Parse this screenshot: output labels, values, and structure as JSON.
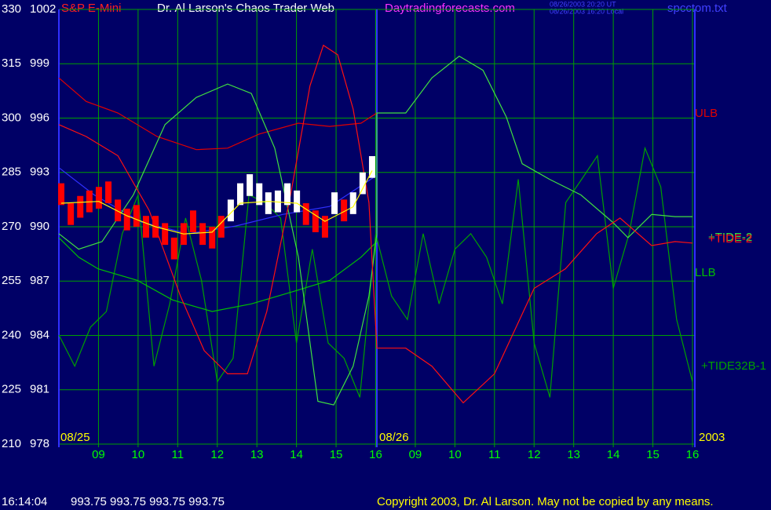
{
  "chart_data": {
    "type": "line",
    "symbol": "S&P E-Mini",
    "title": "Dr. Al Larson's Chaos Trader Web",
    "site": "Daytradingforecasts.com",
    "timestamps": [
      "08/26/2003 20:20 UT",
      "08/26/2003 16:20 Local"
    ],
    "file": "spcctom.txt",
    "annotations": [
      "08/25",
      "08/26",
      "2003"
    ],
    "footer": {
      "time": "16:14:04",
      "quote": "993.75 993.75 993.75 993.75",
      "copyright": "Copyright 2003, Dr. Al Larson. May not be copied by any means."
    },
    "xlim": [
      0,
      16
    ],
    "xticks": [
      {
        "value": 1,
        "label": "09"
      },
      {
        "value": 2,
        "label": "10"
      },
      {
        "value": 3,
        "label": "11"
      },
      {
        "value": 4,
        "label": "12"
      },
      {
        "value": 5,
        "label": "13"
      },
      {
        "value": 6,
        "label": "14"
      },
      {
        "value": 7,
        "label": "15"
      },
      {
        "value": 8,
        "label": "16"
      },
      {
        "value": 9,
        "label": "09"
      },
      {
        "value": 10,
        "label": "10"
      },
      {
        "value": 11,
        "label": "11"
      },
      {
        "value": 12,
        "label": "12"
      },
      {
        "value": 13,
        "label": "13"
      },
      {
        "value": 14,
        "label": "14"
      },
      {
        "value": 15,
        "label": "15"
      },
      {
        "value": 16,
        "label": "16"
      }
    ],
    "ylim": [
      210,
      330
    ],
    "yticks": [
      210,
      225,
      240,
      255,
      270,
      285,
      300,
      315,
      330
    ],
    "y2lim": [
      978,
      1002
    ],
    "y2ticks": [
      978,
      981,
      984,
      987,
      990,
      993,
      996,
      999,
      1002
    ],
    "grid": true,
    "series": [
      {
        "name": "+TIDE32B-1",
        "color": "#00a000",
        "x": [
          0,
          0.4,
          0.8,
          1.2,
          1.6,
          2.0,
          2.4,
          2.8,
          3.2,
          3.6,
          4.0,
          4.4,
          4.8,
          5.2,
          5.6,
          6.0,
          6.4,
          6.8,
          7.2,
          7.6,
          8.0,
          8.4,
          8.8,
          9.2,
          9.6,
          10.0,
          10.4,
          10.8,
          11.2,
          11.6,
          12.0,
          12.4,
          12.8,
          13.2,
          13.6,
          14.0,
          14.4,
          14.8,
          15.2,
          15.6,
          16.0
        ],
        "values": [
          240.1,
          231.5,
          242.3,
          246.6,
          268.1,
          278.8,
          231.5,
          248.7,
          272.4,
          255.2,
          227.2,
          233.7,
          278.8,
          276.7,
          272.4,
          237.9,
          263.8,
          237.9,
          233.7,
          222.9,
          268.1,
          250.9,
          244.4,
          268.1,
          248.7,
          263.8,
          268.1,
          261.6,
          248.7,
          283.1,
          237.9,
          222.9,
          276.7,
          283.1,
          289.6,
          253.0,
          268.1,
          291.7,
          281.0,
          244.4,
          227.2
        ]
      },
      {
        "color": "#3030ff",
        "x": [
          0,
          0.89,
          2.08,
          3.27,
          4.46,
          5.65,
          6.84,
          8.03
        ],
        "values": [
          286.3,
          278.8,
          271.3,
          268.1,
          270.2,
          273.4,
          275.6,
          284.2
        ]
      },
      {
        "name": "ULB",
        "color": "#e00000",
        "x": [
          0,
          0.69,
          1.49,
          2.48,
          3.47,
          4.26,
          5.06,
          6.05,
          6.84,
          7.63,
          8.03
        ],
        "values": [
          311.1,
          304.6,
          301.4,
          294.9,
          291.3,
          291.7,
          295.6,
          298.6,
          297.7,
          298.6,
          301.4
        ]
      },
      {
        "name": "LLB",
        "color": "#00c000",
        "x": [
          0,
          0.5,
          0.99,
          1.98,
          2.87,
          3.87,
          4.86,
          5.85,
          6.84,
          7.63,
          8.03
        ],
        "values": [
          267.0,
          261.6,
          258.4,
          255.2,
          249.8,
          246.6,
          248.7,
          251.9,
          255.2,
          261.6,
          265.9
        ]
      },
      {
        "name": "+TIDE-2",
        "color": "#40e040",
        "x": [
          0,
          0.5,
          1.09,
          1.88,
          2.68,
          3.47,
          4.26,
          4.86,
          5.45,
          6.05,
          6.54,
          6.94,
          7.43,
          7.83,
          8.03,
          8.03,
          8.76,
          9.42,
          10.11,
          10.71,
          11.3,
          11.7,
          12.39,
          13.18,
          13.98,
          14.37,
          14.97,
          15.56,
          16.0
        ],
        "values": [
          268.1,
          263.8,
          265.9,
          278.8,
          298.2,
          305.7,
          309.4,
          306.8,
          291.7,
          261.6,
          221.8,
          220.8,
          231.5,
          250.9,
          268.1,
          301.4,
          301.4,
          311.1,
          317.1,
          313.2,
          300.3,
          287.4,
          283.1,
          278.8,
          271.3,
          267.0,
          273.4,
          272.8,
          272.8
        ]
      },
      {
        "name": "+TIDE-2",
        "color": "#ff1010",
        "x": [
          0,
          0.69,
          1.49,
          2.28,
          3.07,
          3.67,
          4.26,
          4.76,
          5.25,
          5.85,
          6.34,
          6.68,
          7.04,
          7.43,
          7.83,
          8.03,
          8.76,
          9.42,
          10.21,
          11.0,
          12.0,
          12.79,
          13.58,
          14.17,
          14.97,
          15.56,
          16.0
        ],
        "values": [
          298.2,
          294.9,
          289.6,
          274.5,
          250.9,
          235.8,
          229.4,
          229.4,
          246.6,
          278.8,
          308.9,
          320.1,
          317.5,
          302.5,
          276.7,
          236.5,
          236.5,
          231.5,
          221.4,
          229.4,
          253.0,
          258.4,
          268.1,
          272.4,
          264.8,
          265.9,
          265.5
        ]
      }
    ],
    "price": {
      "axis": "y2",
      "x": [
        0.06,
        0.3,
        0.54,
        0.77,
        1.01,
        1.25,
        1.49,
        1.72,
        1.96,
        2.2,
        2.44,
        2.68,
        2.91,
        3.15,
        3.39,
        3.63,
        3.87,
        4.1,
        4.34,
        4.58,
        4.82,
        5.06,
        5.29,
        5.53,
        5.77,
        6.01,
        6.24,
        6.48,
        6.72,
        6.96,
        7.2,
        7.43,
        7.67,
        7.91
      ],
      "high": [
        992.4,
        991.3,
        991.7,
        992.0,
        992.2,
        992.5,
        991.5,
        991.0,
        991.2,
        990.6,
        990.6,
        990.2,
        989.4,
        990.2,
        990.9,
        990.2,
        990.0,
        990.6,
        991.5,
        992.4,
        992.9,
        992.4,
        991.9,
        992.0,
        992.4,
        992.0,
        991.3,
        990.9,
        990.6,
        991.9,
        991.5,
        991.9,
        993.0,
        993.9
      ],
      "low": [
        991.2,
        990.1,
        990.5,
        990.8,
        991.0,
        991.3,
        990.3,
        989.8,
        990.0,
        989.4,
        989.4,
        989.0,
        988.2,
        989.0,
        989.7,
        989.0,
        988.8,
        989.4,
        990.3,
        991.2,
        991.7,
        991.2,
        990.7,
        990.8,
        991.2,
        990.8,
        990.1,
        989.7,
        989.4,
        990.7,
        990.3,
        990.7,
        991.8,
        992.7
      ],
      "colors": [
        "#ff0000",
        "#ff0000",
        "#ff0000",
        "#ff0000",
        "#ff0000",
        "#ff0000",
        "#ff0000",
        "#ff0000",
        "#ff0000",
        "#ff0000",
        "#ff0000",
        "#ff0000",
        "#ff0000",
        "#ff0000",
        "#ff0000",
        "#ff0000",
        "#ff0000",
        "#ff0000",
        "#ffffff",
        "#ffffff",
        "#ffffff",
        "#ffffff",
        "#ffffff",
        "#ffffff",
        "#ffffff",
        "#ffffff",
        "#ff0000",
        "#ff0000",
        "#ff0000",
        "#ffffff",
        "#ff0000",
        "#ffffff",
        "#ffffff",
        "#ffffff"
      ]
    },
    "average": {
      "axis": "y2",
      "color": "#ffff00",
      "x": [
        0.06,
        1.01,
        1.72,
        2.44,
        3.15,
        3.87,
        4.58,
        5.29,
        6.01,
        6.72,
        7.43,
        7.91
      ],
      "values": [
        991.3,
        991.4,
        990.6,
        990.0,
        989.6,
        989.7,
        991.3,
        991.4,
        991.3,
        990.3,
        991.1,
        993.1
      ]
    }
  }
}
